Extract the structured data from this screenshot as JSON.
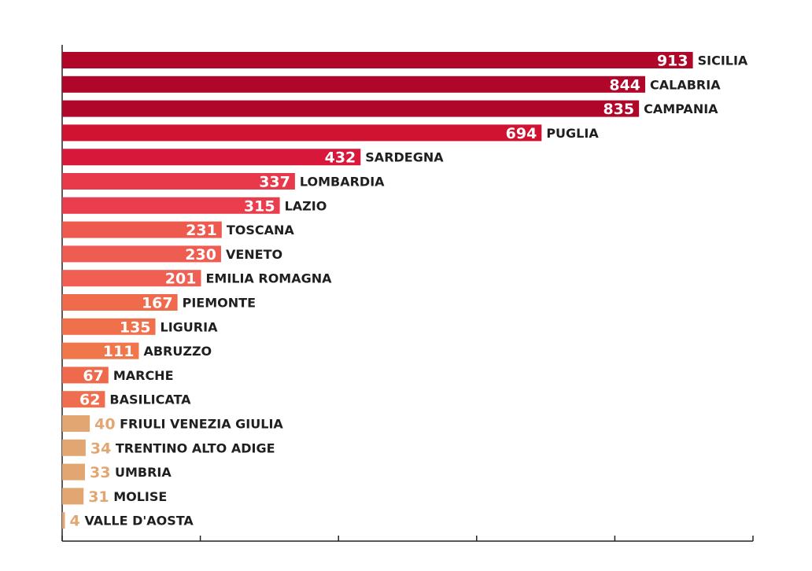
{
  "chart_data": {
    "type": "bar",
    "orientation": "horizontal",
    "categories": [
      "SICILIA",
      "CALABRIA",
      "CAMPANIA",
      "PUGLIA",
      "SARDEGNA",
      "LOMBARDIA",
      "LAZIO",
      "TOSCANA",
      "VENETO",
      "EMILIA ROMAGNA",
      "PIEMONTE",
      "LIGURIA",
      "ABRUZZO",
      "MARCHE",
      "BASILICATA",
      "FRIULI VENEZIA GIULIA",
      "TRENTINO ALTO ADIGE",
      "UMBRIA",
      "MOLISE",
      "VALLE D'AOSTA"
    ],
    "values": [
      913,
      844,
      835,
      694,
      432,
      337,
      315,
      231,
      230,
      201,
      167,
      135,
      111,
      67,
      62,
      40,
      34,
      33,
      31,
      4
    ],
    "value_labels": [
      "913",
      "844",
      "835",
      "694",
      "432",
      "337",
      "315",
      "231",
      "230",
      "201",
      "167",
      "135",
      "111",
      "67",
      "62",
      "40",
      "34",
      "33",
      "31",
      "4"
    ],
    "colors": [
      "#b0062a",
      "#b0062a",
      "#b0062a",
      "#cf1330",
      "#d8183a",
      "#e8394a",
      "#ea3e4e",
      "#ef5a4f",
      "#ef5d52",
      "#ef5f53",
      "#f06a4c",
      "#f0704c",
      "#f0764b",
      "#ef6a4c",
      "#ef6e50",
      "#e2a673",
      "#e2a673",
      "#e2a673",
      "#e2a673",
      "#e2a673"
    ],
    "label_color_on_bar": "#ffffff",
    "label_color_short": "#e2a673",
    "xlim": [
      0,
      1000
    ],
    "x_ticks": [
      0,
      200,
      400,
      600,
      800,
      1000
    ],
    "title": "",
    "xlabel": "",
    "ylabel": "",
    "grid": false,
    "legend": "none"
  }
}
